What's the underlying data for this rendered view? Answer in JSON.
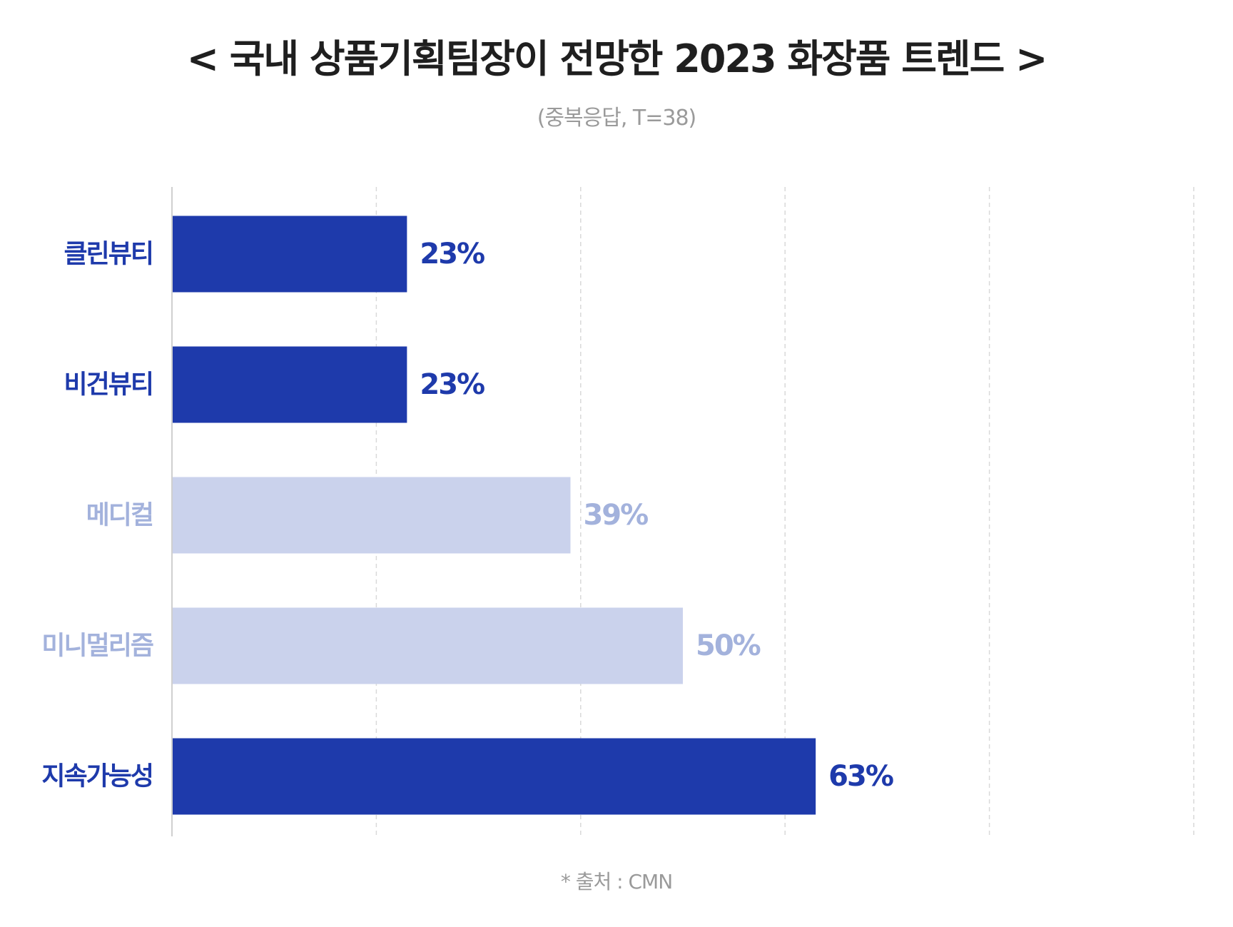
{
  "title": "< 국내 상품기획팀장이 전망한 2023 화장품 트렌드 >",
  "subtitle": "(중복응답, T=38)",
  "source": "* 출처 : CMN",
  "colors": {
    "highlight": "#1e3aab",
    "muted_bar": "#cad2ec",
    "muted_text": "#a3b2dc",
    "grid": "#d9d9d9",
    "axis": "#cfcfcf"
  },
  "chart_data": {
    "type": "bar",
    "orientation": "horizontal",
    "categories": [
      "클린뷰티",
      "비건뷰티",
      "메디컬",
      "미니멀리즘",
      "지속가능성"
    ],
    "values": [
      23,
      23,
      39,
      50,
      63
    ],
    "value_labels": [
      "23%",
      "23%",
      "39%",
      "50%",
      "63%"
    ],
    "highlighted": [
      true,
      true,
      false,
      false,
      true
    ],
    "xlim": [
      0,
      100
    ],
    "grid": true,
    "xlabel": "",
    "ylabel": ""
  }
}
